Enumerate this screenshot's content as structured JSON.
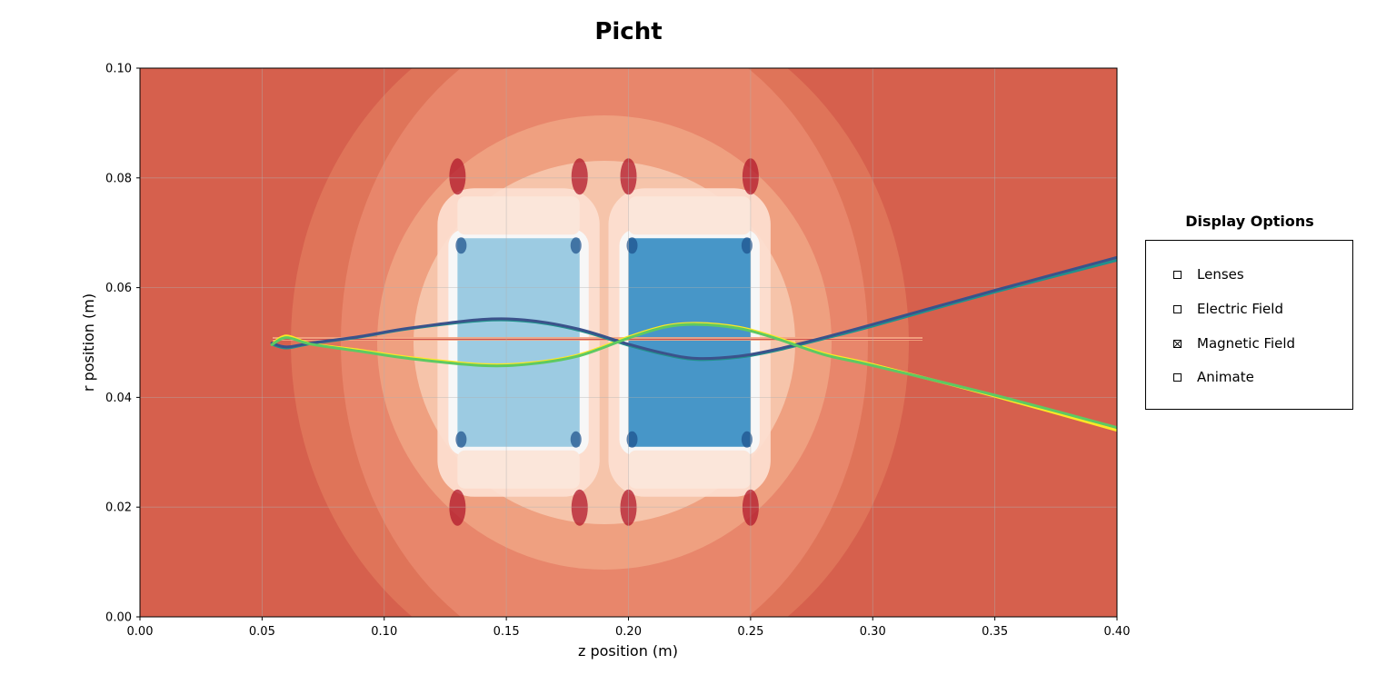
{
  "title": "Picht",
  "display_options": {
    "title": "Display Options",
    "items": [
      {
        "label": "Lenses",
        "checked": false
      },
      {
        "label": "Electric Field",
        "checked": false
      },
      {
        "label": "Magnetic Field",
        "checked": true
      },
      {
        "label": "Animate",
        "checked": false
      }
    ]
  },
  "chart_data": {
    "type": "heatmap",
    "title": "Picht",
    "xlabel": "z position (m)",
    "ylabel": "r position (m)",
    "xlim": [
      0.0,
      0.4
    ],
    "ylim": [
      0.0,
      0.1
    ],
    "xticks": [
      "0.00",
      "0.05",
      "0.10",
      "0.15",
      "0.20",
      "0.25",
      "0.30",
      "0.35",
      "0.40"
    ],
    "yticks": [
      "0.00",
      "0.02",
      "0.04",
      "0.06",
      "0.08",
      "0.10"
    ],
    "grid": true,
    "colormap": "RdBu",
    "colors": {
      "background": "#d6604d",
      "mid": "#f7f7f7",
      "deep_blue": "#2166ac",
      "light_blue": "#9ecae1"
    },
    "magnetic_lenses": [
      {
        "z_start": 0.13,
        "z_end": 0.18,
        "r_inner": 0.031,
        "r_outer": 0.069,
        "core_color": "#9ccbe2"
      },
      {
        "z_start": 0.2,
        "z_end": 0.25,
        "r_inner": 0.031,
        "r_outer": 0.069,
        "core_color": "#4796c8"
      }
    ],
    "trajectories": {
      "series": [
        {
          "color": "#fde725",
          "points": [
            [
              0.054,
              0.0497
            ],
            [
              0.06,
              0.0512
            ],
            [
              0.07,
              0.0498
            ],
            [
              0.09,
              0.0486
            ],
            [
              0.11,
              0.0473
            ],
            [
              0.14,
              0.046
            ],
            [
              0.16,
              0.0463
            ],
            [
              0.18,
              0.0478
            ],
            [
              0.2,
              0.051
            ],
            [
              0.215,
              0.053
            ],
            [
              0.228,
              0.0535
            ],
            [
              0.245,
              0.0528
            ],
            [
              0.26,
              0.051
            ],
            [
              0.28,
              0.048
            ],
            [
              0.3,
              0.046
            ],
            [
              0.35,
              0.0402
            ],
            [
              0.4,
              0.034
            ]
          ]
        },
        {
          "color": "#21918c",
          "points": [
            [
              0.054,
              0.0497
            ],
            [
              0.06,
              0.049
            ],
            [
              0.07,
              0.0498
            ],
            [
              0.09,
              0.051
            ],
            [
              0.11,
              0.0525
            ],
            [
              0.14,
              0.054
            ],
            [
              0.16,
              0.0538
            ],
            [
              0.18,
              0.0522
            ],
            [
              0.2,
              0.0495
            ],
            [
              0.215,
              0.0478
            ],
            [
              0.228,
              0.0469
            ],
            [
              0.245,
              0.0473
            ],
            [
              0.26,
              0.0485
            ],
            [
              0.28,
              0.0507
            ],
            [
              0.3,
              0.053
            ],
            [
              0.35,
              0.0592
            ],
            [
              0.4,
              0.065
            ]
          ]
        },
        {
          "color": "#3b528b",
          "points": [
            [
              0.054,
              0.0499
            ],
            [
              0.06,
              0.0492
            ],
            [
              0.07,
              0.0499
            ],
            [
              0.09,
              0.0511
            ],
            [
              0.11,
              0.0526
            ],
            [
              0.14,
              0.0542
            ],
            [
              0.16,
              0.054
            ],
            [
              0.18,
              0.0524
            ],
            [
              0.2,
              0.0497
            ],
            [
              0.215,
              0.048
            ],
            [
              0.228,
              0.0471
            ],
            [
              0.245,
              0.0475
            ],
            [
              0.26,
              0.0487
            ],
            [
              0.28,
              0.0509
            ],
            [
              0.3,
              0.0533
            ],
            [
              0.35,
              0.0595
            ],
            [
              0.4,
              0.0655
            ]
          ]
        },
        {
          "color": "#5ec962",
          "points": [
            [
              0.054,
              0.0496
            ],
            [
              0.06,
              0.0509
            ],
            [
              0.07,
              0.0497
            ],
            [
              0.09,
              0.0484
            ],
            [
              0.11,
              0.0471
            ],
            [
              0.14,
              0.0458
            ],
            [
              0.16,
              0.0461
            ],
            [
              0.18,
              0.0476
            ],
            [
              0.2,
              0.0508
            ],
            [
              0.215,
              0.0528
            ],
            [
              0.228,
              0.0533
            ],
            [
              0.245,
              0.0526
            ],
            [
              0.26,
              0.0508
            ],
            [
              0.28,
              0.0478
            ],
            [
              0.3,
              0.0458
            ],
            [
              0.35,
              0.0404
            ],
            [
              0.4,
              0.0345
            ]
          ]
        }
      ]
    }
  }
}
